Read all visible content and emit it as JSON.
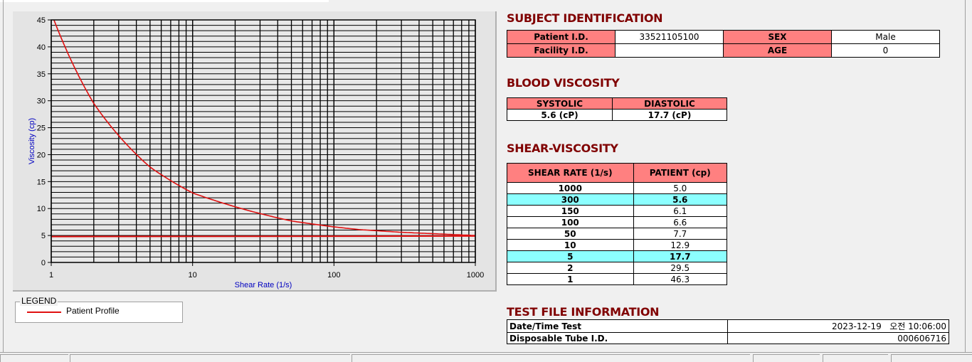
{
  "chart_data": {
    "type": "line",
    "xlabel": "Shear Rate (1/s)",
    "ylabel": "Viscosity (cp)",
    "xscale": "log",
    "xlim": [
      1,
      1000
    ],
    "ylim": [
      0,
      45
    ],
    "xticks": [
      "1",
      "10",
      "100",
      "1000"
    ],
    "yticks": [
      "0",
      "5",
      "10",
      "15",
      "20",
      "25",
      "30",
      "35",
      "40",
      "45"
    ],
    "grid": true,
    "series": [
      {
        "name": "Patient Profile",
        "color": "#e01010",
        "x": [
          1,
          2,
          5,
          10,
          50,
          100,
          150,
          300,
          1000
        ],
        "y": [
          46.3,
          29.5,
          17.7,
          12.9,
          7.7,
          6.6,
          6.1,
          5.6,
          5.0
        ]
      },
      {
        "color": "#e01010",
        "x": [
          1,
          1000
        ],
        "y": [
          4.8,
          4.9
        ]
      }
    ],
    "legend": {
      "title": "LEGEND",
      "placement": "bottom-left"
    }
  },
  "subject": {
    "title": "SUBJECT IDENTIFICATION",
    "patient_id_label": "Patient I.D.",
    "patient_id": "33521105100",
    "sex_label": "SEX",
    "sex": "Male",
    "facility_id_label": "Facility I.D.",
    "facility_id": "",
    "age_label": "AGE",
    "age": "0"
  },
  "blood": {
    "title": "BLOOD VISCOSITY",
    "systolic_label": "SYSTOLIC",
    "diastolic_label": "DIASTOLIC",
    "systolic": "5.6 (cP)",
    "diastolic": "17.7 (cP)"
  },
  "shear": {
    "title": "SHEAR-VISCOSITY",
    "col1": "SHEAR RATE (1/s)",
    "col2": "PATIENT (cp)",
    "rows": [
      {
        "rate": "1000",
        "value": "5.0",
        "highlight": false
      },
      {
        "rate": "300",
        "value": "5.6",
        "highlight": true
      },
      {
        "rate": "150",
        "value": "6.1",
        "highlight": false
      },
      {
        "rate": "100",
        "value": "6.6",
        "highlight": false
      },
      {
        "rate": "50",
        "value": "7.7",
        "highlight": false
      },
      {
        "rate": "10",
        "value": "12.9",
        "highlight": false
      },
      {
        "rate": "5",
        "value": "17.7",
        "highlight": true
      },
      {
        "rate": "2",
        "value": "29.5",
        "highlight": false
      },
      {
        "rate": "1",
        "value": "46.3",
        "highlight": false
      }
    ]
  },
  "test": {
    "title": "TEST FILE INFORMATION",
    "datetime_label": "Date/Time Test",
    "datetime": "2023-12-19   오전 10:06:00",
    "tube_label": "Disposable Tube I.D.",
    "tube": "000606716"
  },
  "colors": {
    "header": "#ff8080",
    "highlight": "#8cffff",
    "title": "#800000",
    "curve": "#e01010"
  }
}
